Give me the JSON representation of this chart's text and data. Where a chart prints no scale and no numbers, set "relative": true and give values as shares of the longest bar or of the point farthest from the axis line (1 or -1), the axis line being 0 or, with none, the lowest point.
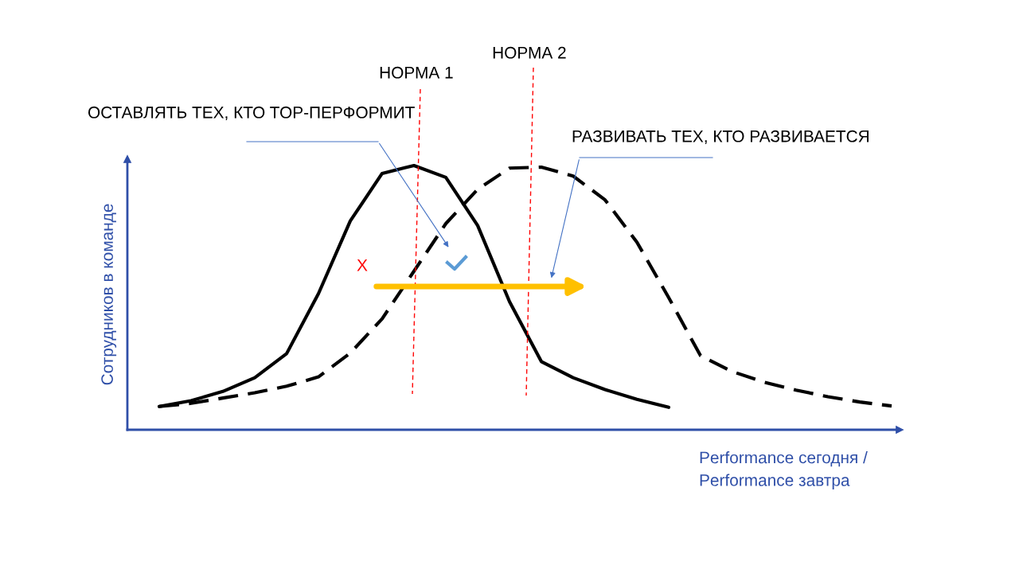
{
  "chart_data": {
    "type": "line",
    "relative": true,
    "xlabel": "Performance сегодня /\nPerformance завтра",
    "ylabel": "Сотрудников в команде",
    "categories": [
      null,
      null,
      null,
      null,
      null,
      null,
      null,
      null,
      null,
      null,
      null,
      null,
      null,
      null,
      null,
      null,
      null,
      null,
      null,
      null,
      null,
      null,
      null,
      null
    ],
    "series": [
      {
        "color": "#000000",
        "line_style": "solid",
        "values": [
          0.088,
          0.11,
          0.145,
          0.197,
          0.288,
          0.515,
          0.79,
          0.97,
          1.0,
          0.955,
          0.773,
          0.485,
          0.258,
          0.197,
          0.152,
          0.115,
          0.085,
          null,
          null,
          null,
          null,
          null,
          null,
          null
        ]
      },
      {
        "color": "#000000",
        "line_style": "dashed",
        "values": [
          0.088,
          0.1,
          0.12,
          0.14,
          0.165,
          0.2,
          0.29,
          0.42,
          0.6,
          0.78,
          0.91,
          0.99,
          0.994,
          0.96,
          0.87,
          0.71,
          0.5,
          0.28,
          0.22,
          0.18,
          0.15,
          0.125,
          0.105,
          0.09
        ]
      }
    ],
    "annotations": [
      "ОСТАВЛЯТЬ ТЕХ, КТО TOP-ПЕРФОРМИТ",
      "РАЗВИВАТЬ ТЕХ, КТО РАЗВИВАЕТСЯ",
      "X",
      "НОРМА 1",
      "НОРМА 2"
    ],
    "marker": "none",
    "legend": false
  }
}
